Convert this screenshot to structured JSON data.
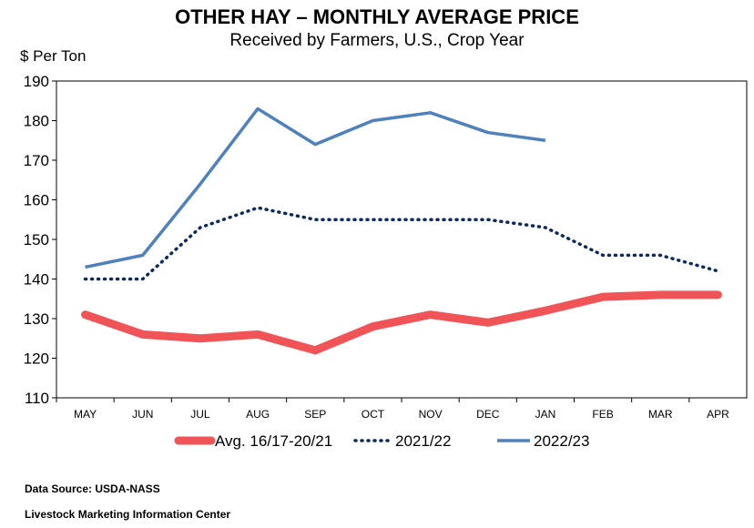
{
  "chart_data": {
    "type": "line",
    "title": "OTHER HAY – MONTHLY AVERAGE PRICE",
    "subtitle": "Received by Farmers, U.S., Crop Year",
    "ylabel": "$ Per Ton",
    "xlabel": "",
    "ylim": [
      110,
      190
    ],
    "yticks": [
      110,
      120,
      130,
      140,
      150,
      160,
      170,
      180,
      190
    ],
    "categories": [
      "MAY",
      "JUN",
      "JUL",
      "AUG",
      "SEP",
      "OCT",
      "NOV",
      "DEC",
      "JAN",
      "FEB",
      "MAR",
      "APR"
    ],
    "grid": false,
    "legend": "bottom",
    "series": [
      {
        "name": "Avg. 16/17-20/21",
        "color": "#f15456",
        "style": "thick",
        "values": [
          131,
          126,
          125,
          126,
          122,
          128,
          131,
          129,
          132,
          135.5,
          136,
          136
        ]
      },
      {
        "name": "2021/22",
        "color": "#0d2a5e",
        "style": "dotted",
        "values": [
          140,
          140,
          153,
          158,
          155,
          155,
          155,
          155,
          153,
          146,
          146,
          142
        ]
      },
      {
        "name": "2022/23",
        "color": "#4f81bd",
        "style": "solid",
        "values": [
          143,
          146,
          164,
          183,
          174,
          180,
          182,
          177,
          175,
          null,
          null,
          null
        ]
      }
    ]
  },
  "footer": {
    "source": "Data Source:  USDA-NASS",
    "org": "Livestock Marketing Information Center"
  }
}
